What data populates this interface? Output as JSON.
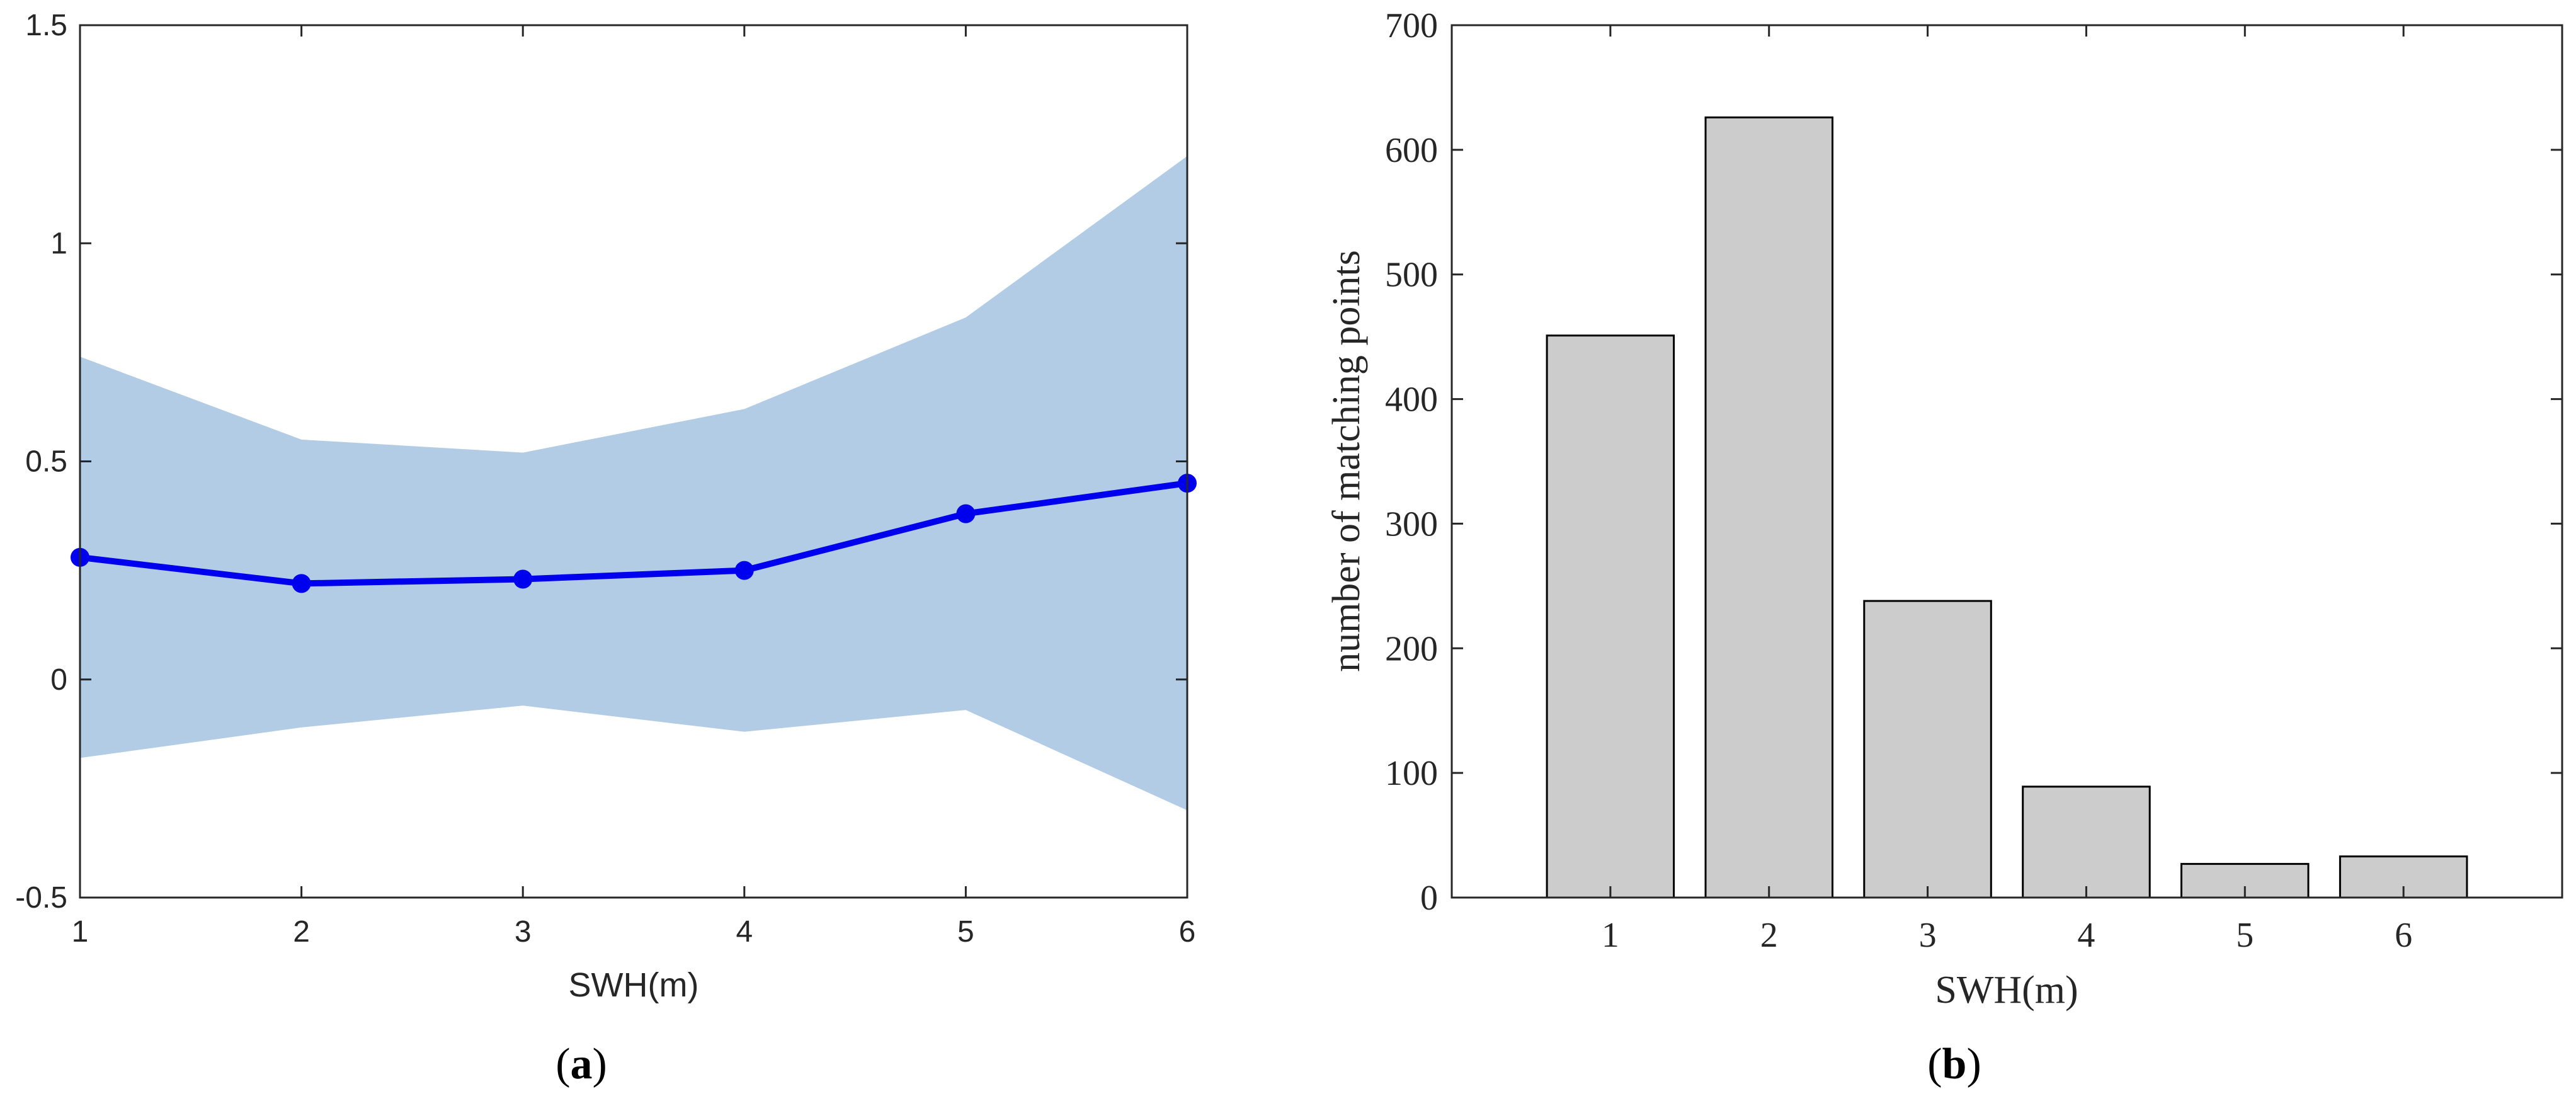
{
  "chart_data": [
    {
      "type": "line",
      "panel_label": "a",
      "x": [
        1,
        2,
        3,
        4,
        5,
        6
      ],
      "series": [
        {
          "values": [
            0.28,
            0.22,
            0.23,
            0.25,
            0.38,
            0.45
          ]
        }
      ],
      "band": {
        "upper": [
          0.74,
          0.55,
          0.52,
          0.62,
          0.83,
          1.2
        ],
        "lower": [
          -0.18,
          -0.11,
          -0.06,
          -0.12,
          -0.07,
          -0.3
        ]
      },
      "title": "",
      "xlabel": "SWH(m)",
      "ylabel": "",
      "xlim": [
        1,
        6
      ],
      "ylim": [
        -0.5,
        1.5
      ],
      "xticks": [
        1,
        2,
        3,
        4,
        5,
        6
      ],
      "xtick_labels": [
        "1",
        "2",
        "3",
        "4",
        "5",
        "6"
      ],
      "yticks": [
        -0.5,
        0,
        0.5,
        1,
        1.5
      ],
      "ytick_labels": [
        "-0.5",
        "0",
        "0.5",
        "1",
        "1.5"
      ],
      "grid": false,
      "colors": {
        "line": "#0000ee",
        "band": "#b3cce5"
      }
    },
    {
      "type": "bar",
      "panel_label": "b",
      "categories": [
        "1",
        "2",
        "3",
        "4",
        "5",
        "6"
      ],
      "values": [
        451,
        626,
        238,
        89,
        27,
        33
      ],
      "title": "",
      "xlabel": "SWH(m)",
      "ylabel": "number of matching points",
      "xlim": [
        0,
        7
      ],
      "ylim": [
        0,
        700
      ],
      "yticks": [
        0,
        100,
        200,
        300,
        400,
        500,
        600,
        700
      ],
      "ytick_labels": [
        "0",
        "100",
        "200",
        "300",
        "400",
        "500",
        "600",
        "700"
      ],
      "grid": false,
      "colors": {
        "bar": "#cccccc",
        "bar_edge": "#000000"
      }
    }
  ],
  "captions": {
    "a": {
      "open": "(",
      "letter": "a",
      "close": ")"
    },
    "b": {
      "open": "(",
      "letter": "b",
      "close": ")"
    }
  }
}
